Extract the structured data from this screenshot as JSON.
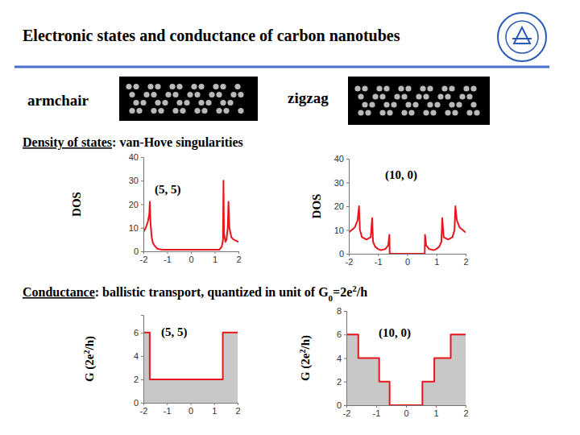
{
  "slide": {
    "title": "Electronic states and conductance of carbon nanotubes",
    "armchair": "armchair",
    "zigzag": "zigzag",
    "dos_heading": [
      "Density of states",
      ": van-Hove singularities"
    ],
    "conductance_heading": [
      "Conductance",
      ": ballistic transport, quantized in unit of G",
      "0",
      "=2e",
      "2",
      "/h"
    ]
  },
  "chart_data": [
    {
      "type": "line",
      "label": "(5, 5)",
      "ylabel": [
        "DOS"
      ],
      "color": "#e8161b",
      "x": [
        -2,
        -1.9,
        -1.8,
        -1.75,
        -1.73,
        -1.7,
        -1.65,
        -1.6,
        -1.5,
        -1.4,
        -1.2,
        0,
        1.2,
        1.3,
        1.35,
        1.37,
        1.39,
        1.45,
        1.5,
        1.55,
        1.58,
        1.62,
        1.7,
        1.8,
        2
      ],
      "values": [
        8,
        10,
        13,
        16,
        21,
        12,
        6,
        3.5,
        2,
        1,
        0.7,
        0.7,
        0.7,
        2,
        5,
        30,
        8,
        4,
        5,
        10,
        21,
        10,
        6,
        5,
        4
      ],
      "xlim": [
        -2,
        2
      ],
      "xticks": [
        -2,
        -1,
        0,
        1,
        2
      ],
      "ylim": [
        0,
        40
      ],
      "yticks": [
        0,
        10,
        20,
        30,
        40
      ]
    },
    {
      "type": "line",
      "label": "(10, 0)",
      "ylabel": [
        "DOS"
      ],
      "color": "#e8161b",
      "x": [
        -2,
        -1.9,
        -1.8,
        -1.7,
        -1.65,
        -1.62,
        -1.55,
        -1.4,
        -1.25,
        -1.2,
        -1.17,
        -1.1,
        -1.0,
        -0.9,
        -0.75,
        -0.65,
        -0.61,
        -0.6,
        0.6,
        0.61,
        0.65,
        0.75,
        0.9,
        1.0,
        1.1,
        1.17,
        1.2,
        1.25,
        1.4,
        1.55,
        1.62,
        1.65,
        1.7,
        1.8,
        1.9,
        2
      ],
      "values": [
        9,
        10,
        11,
        14,
        20,
        10,
        7,
        6,
        7,
        15,
        5,
        3,
        2,
        1.5,
        2,
        3.5,
        8,
        0,
        0,
        8,
        3.5,
        2,
        1.5,
        2,
        3,
        5,
        15,
        7,
        6,
        7,
        10,
        20,
        14,
        11,
        10,
        9
      ],
      "xlim": [
        -2,
        2
      ],
      "xticks": [
        -2,
        -1,
        0,
        1,
        2
      ],
      "ylim": [
        0,
        40
      ],
      "yticks": [
        0,
        10,
        20,
        30,
        40
      ]
    },
    {
      "type": "area",
      "label": "(5, 5)",
      "ylabel": [
        "G (2e",
        "2",
        "/h)"
      ],
      "color": "#e8161b",
      "x": [
        -2,
        -1.73,
        -1.73,
        1.37,
        1.37,
        2
      ],
      "values": [
        6,
        6,
        2,
        2,
        6,
        6
      ],
      "xlim": [
        -2,
        2
      ],
      "xticks": [
        -2,
        -1,
        0,
        1,
        2
      ],
      "ylim": [
        0,
        7.5
      ],
      "yticks": [
        0,
        2,
        4,
        6
      ]
    },
    {
      "type": "area",
      "label": "(10, 0)",
      "ylabel": [
        "G (2e",
        "2",
        "/h)"
      ],
      "color": "#e8161b",
      "x": [
        -2,
        -1.6,
        -1.6,
        -0.9,
        -0.9,
        -0.55,
        -0.55,
        0.55,
        0.55,
        0.95,
        0.95,
        1.5,
        1.5,
        2
      ],
      "values": [
        6,
        6,
        4,
        4,
        2,
        2,
        0,
        0,
        2,
        2,
        4,
        4,
        6,
        6
      ],
      "xlim": [
        -2,
        2
      ],
      "xticks": [
        -2,
        -1,
        0,
        1,
        2
      ],
      "ylim": [
        0,
        8
      ],
      "yticks": [
        0,
        2,
        4,
        6,
        8
      ]
    }
  ]
}
